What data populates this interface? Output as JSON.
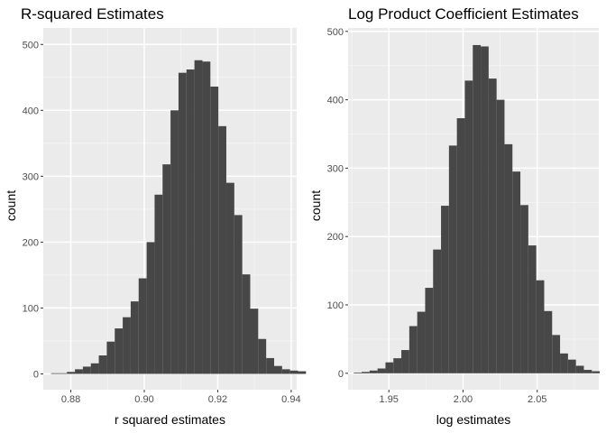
{
  "theme": {
    "panel_background": "#ebebeb",
    "grid_major": "#ffffff",
    "grid_minor": "#f5f5f5",
    "bar_fill": "#474747",
    "tick_color": "#333333"
  },
  "chart_data": [
    {
      "type": "histogram",
      "title": "R-squared Estimates",
      "xlabel": "r squared estimates",
      "ylabel": "count",
      "xlim": [
        0.8725,
        0.9415
      ],
      "ylim": [
        -24,
        525
      ],
      "x_ticks": [
        0.88,
        0.9,
        0.92,
        0.94
      ],
      "x_tick_labels": [
        "0.88",
        "0.90",
        "0.92",
        "0.94"
      ],
      "y_ticks": [
        0,
        100,
        200,
        300,
        400,
        500
      ],
      "y_tick_labels": [
        "0",
        "100",
        "200",
        "300",
        "400",
        "500"
      ],
      "bin_start": 0.8746,
      "bin_width": 0.00217,
      "counts": [
        1,
        1,
        3,
        7,
        11,
        16,
        28,
        49,
        69,
        86,
        110,
        145,
        200,
        272,
        318,
        400,
        457,
        462,
        476,
        474,
        436,
        376,
        290,
        241,
        151,
        99,
        53,
        24,
        12,
        7,
        5,
        4
      ]
    },
    {
      "type": "histogram",
      "title": "Log Product Coefficient Estimates",
      "xlabel": "log estimates",
      "ylabel": "count",
      "xlim": [
        1.9225,
        2.0915
      ],
      "ylim": [
        -24,
        505
      ],
      "x_ticks": [
        1.95,
        2.0,
        2.05
      ],
      "x_tick_labels": [
        "1.95",
        "2.00",
        "2.05"
      ],
      "y_ticks": [
        0,
        100,
        200,
        300,
        400,
        500
      ],
      "y_tick_labels": [
        "0",
        "100",
        "200",
        "300",
        "400",
        "500"
      ],
      "bin_start": 1.9263,
      "bin_width": 0.00535,
      "counts": [
        1,
        2,
        4,
        7,
        16,
        22,
        34,
        69,
        90,
        125,
        181,
        245,
        333,
        373,
        428,
        480,
        478,
        431,
        400,
        335,
        295,
        246,
        187,
        136,
        91,
        56,
        29,
        20,
        11,
        5,
        3
      ]
    }
  ]
}
